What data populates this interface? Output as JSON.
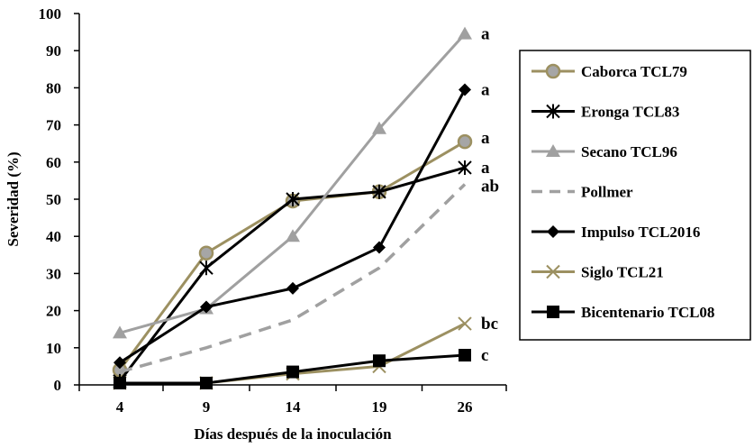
{
  "chart_data": {
    "type": "line",
    "title": "",
    "xlabel": "Días después de la inoculación",
    "ylabel": "Severidad (%)",
    "x": [
      4,
      9,
      14,
      19,
      26
    ],
    "ylim": [
      0,
      100
    ],
    "yticks": [
      0,
      10,
      20,
      30,
      40,
      50,
      60,
      70,
      80,
      90,
      100
    ],
    "grid": false,
    "legend_position": "right",
    "series": [
      {
        "name": "Caborca TCL79",
        "values": [
          4,
          35.5,
          49.5,
          52,
          65.5
        ],
        "color": "#9c9061",
        "marker": "circle",
        "dash": false,
        "label": "a"
      },
      {
        "name": "Eronga  TCL83",
        "values": [
          1,
          31.5,
          50,
          52,
          58.5
        ],
        "color": "#000000",
        "marker": "asterisk",
        "dash": false,
        "label": "a"
      },
      {
        "name": "Secano TCL96",
        "values": [
          14,
          20.5,
          40,
          69,
          94.5
        ],
        "color": "#a0a0a0",
        "marker": "triangle",
        "dash": false,
        "label": "a"
      },
      {
        "name": "Pollmer",
        "values": [
          3.5,
          10,
          17.5,
          31.5,
          54
        ],
        "color": "#a0a0a0",
        "marker": "none",
        "dash": true,
        "label": "ab"
      },
      {
        "name": "Impulso TCL2016",
        "values": [
          6,
          21,
          26,
          37,
          79.5
        ],
        "color": "#000000",
        "marker": "diamond",
        "dash": false,
        "label": "a"
      },
      {
        "name": "Siglo TCL21",
        "values": [
          0.5,
          0.5,
          3,
          5,
          16.5
        ],
        "color": "#9c9061",
        "marker": "x",
        "dash": false,
        "label": "bc"
      },
      {
        "name": "Bicentenario TCL08",
        "values": [
          0.5,
          0.5,
          3.5,
          6.5,
          8
        ],
        "color": "#000000",
        "marker": "square",
        "dash": false,
        "label": "c"
      }
    ]
  }
}
